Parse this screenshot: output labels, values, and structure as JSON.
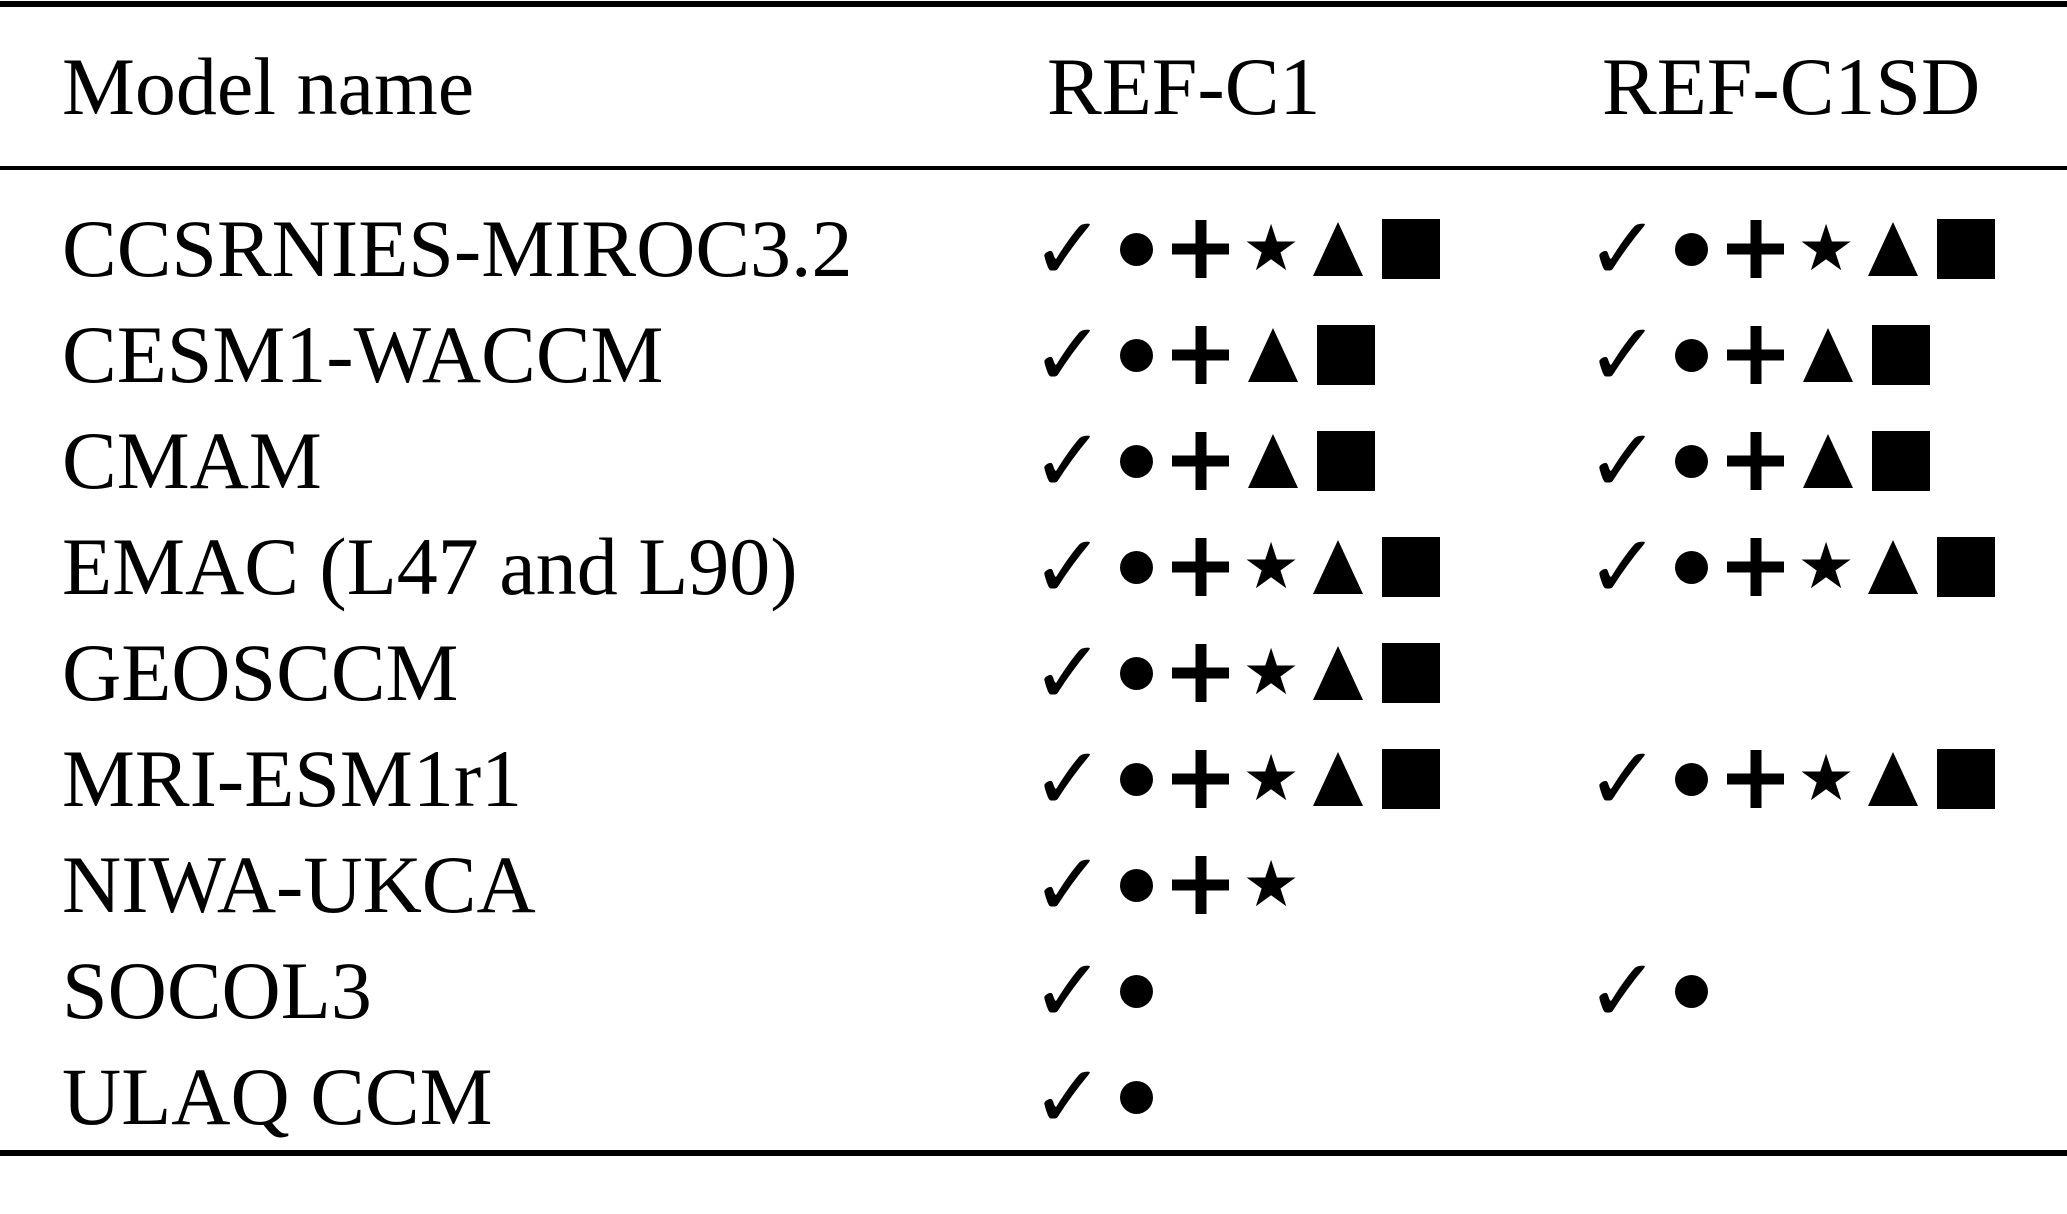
{
  "colors": {
    "ink": "#000000",
    "background": "#ffffff"
  },
  "table": {
    "columns": [
      {
        "label": "Model name"
      },
      {
        "label": "REF-C1"
      },
      {
        "label": "REF-C1SD"
      }
    ],
    "symbol_glyphs": {
      "check": "✓",
      "star": "★"
    },
    "symbol_names": [
      "check",
      "circle",
      "plus",
      "star",
      "triangle",
      "square"
    ],
    "rows": [
      {
        "model": "CCSRNIES-MIROC3.2",
        "ref_c1": [
          "check",
          "circle",
          "plus",
          "star",
          "triangle",
          "square"
        ],
        "ref_c1sd": [
          "check",
          "circle",
          "plus",
          "star",
          "triangle",
          "square"
        ]
      },
      {
        "model": "CESM1-WACCM",
        "ref_c1": [
          "check",
          "circle",
          "plus",
          "triangle",
          "square"
        ],
        "ref_c1sd": [
          "check",
          "circle",
          "plus",
          "triangle",
          "square"
        ]
      },
      {
        "model": "CMAM",
        "ref_c1": [
          "check",
          "circle",
          "plus",
          "triangle",
          "square"
        ],
        "ref_c1sd": [
          "check",
          "circle",
          "plus",
          "triangle",
          "square"
        ]
      },
      {
        "model": "EMAC (L47 and L90)",
        "ref_c1": [
          "check",
          "circle",
          "plus",
          "star",
          "triangle",
          "square"
        ],
        "ref_c1sd": [
          "check",
          "circle",
          "plus",
          "star",
          "triangle",
          "square"
        ]
      },
      {
        "model": "GEOSCCM",
        "ref_c1": [
          "check",
          "circle",
          "plus",
          "star",
          "triangle",
          "square"
        ],
        "ref_c1sd": []
      },
      {
        "model": "MRI-ESM1r1",
        "ref_c1": [
          "check",
          "circle",
          "plus",
          "star",
          "triangle",
          "square"
        ],
        "ref_c1sd": [
          "check",
          "circle",
          "plus",
          "star",
          "triangle",
          "square"
        ]
      },
      {
        "model": "NIWA-UKCA",
        "ref_c1": [
          "check",
          "circle",
          "plus",
          "star"
        ],
        "ref_c1sd": []
      },
      {
        "model": "SOCOL3",
        "ref_c1": [
          "check",
          "circle"
        ],
        "ref_c1sd": [
          "check",
          "circle"
        ]
      },
      {
        "model": "ULAQ CCM",
        "ref_c1": [
          "check",
          "circle"
        ],
        "ref_c1sd": []
      }
    ]
  }
}
